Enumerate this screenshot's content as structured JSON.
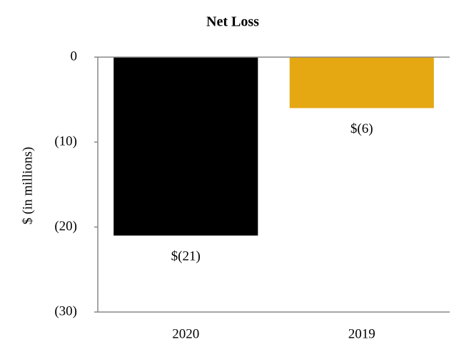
{
  "chart_data": {
    "type": "bar",
    "title": "Net Loss",
    "y_label": "$ (in millions)",
    "categories": [
      "2020",
      "2019"
    ],
    "values": [
      -21,
      -6
    ],
    "value_labels": [
      "$(21)",
      "$(6)"
    ],
    "colors": [
      "#000000",
      "#e5a813"
    ],
    "ylim": [
      -30,
      0
    ],
    "yticks": [
      0,
      {
        "value": -10,
        "label": "(10)"
      },
      {
        "value": -20,
        "label": "(20)"
      },
      {
        "value": -30,
        "label": "(30)"
      }
    ]
  }
}
